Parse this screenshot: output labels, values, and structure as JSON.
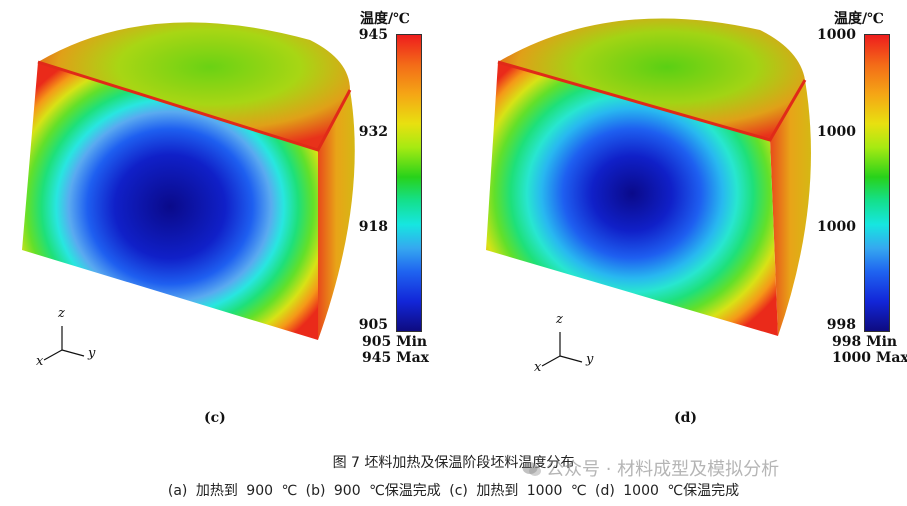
{
  "panels": [
    {
      "id": "c",
      "label": "(c)",
      "legend": {
        "title": "温度/℃",
        "ticks": [
          "945",
          "932",
          "918",
          "905"
        ],
        "min_line": "905 Min",
        "max_line": "945 Max"
      }
    },
    {
      "id": "d",
      "label": "(d)",
      "legend": {
        "title": "温度/℃",
        "ticks": [
          "1000",
          "1000",
          "1000",
          "998"
        ],
        "min_line": "998 Min",
        "max_line": "1000 Max"
      }
    }
  ],
  "axes": {
    "z": "z",
    "x": "x",
    "y": "y"
  },
  "caption": {
    "title": "图 7    坯料加热及保温阶段坯料温度分布",
    "subtitle": "(a) 加热到 900 ℃    (b) 900 ℃保温完成    (c) 加热到 1000 ℃    (d) 1000 ℃保温完成"
  },
  "watermark": {
    "text": "公众号 · 材料成型及模拟分析",
    "icon": "wechat-icon"
  },
  "colors": {
    "hot": "#ee1d1d",
    "mid": "#28d21a",
    "cold": "#0e0b80"
  }
}
